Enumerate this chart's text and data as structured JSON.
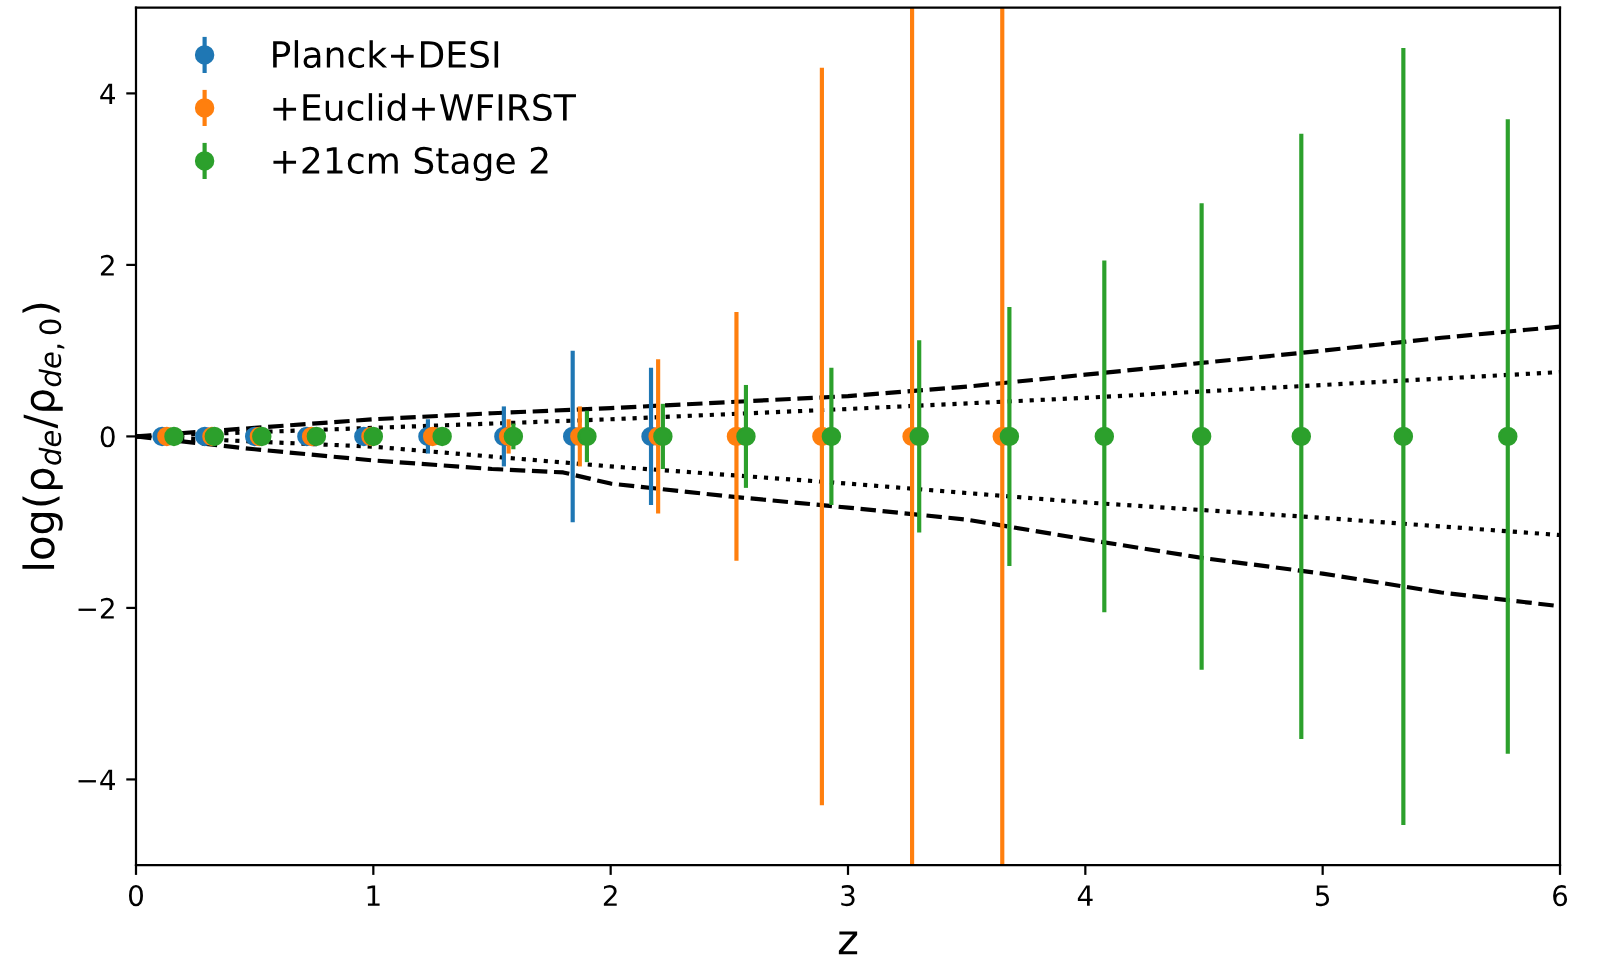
{
  "chart_data": {
    "type": "scatter",
    "xlabel": "z",
    "ylabel": "log(ρ$_{de}$/ρ$_{de,0}$)",
    "xlim": [
      0,
      6
    ],
    "ylim": [
      -5,
      5
    ],
    "xticks": [
      0,
      1,
      2,
      3,
      4,
      5,
      6
    ],
    "yticks": [
      -4,
      -2,
      0,
      2,
      4
    ],
    "legend": "top left",
    "grid": false,
    "marker": "circle",
    "series": [
      {
        "type": "line",
        "marker": "none",
        "line_style": "dashed",
        "color": "#000000",
        "x": [
          0,
          0.5,
          1,
          1.5,
          2,
          2.5,
          3,
          3.5,
          4,
          4.5,
          5,
          5.5,
          6
        ],
        "values": [
          0,
          0.1,
          0.2,
          0.27,
          0.33,
          0.4,
          0.47,
          0.58,
          0.72,
          0.86,
          1.0,
          1.15,
          1.28
        ]
      },
      {
        "type": "line",
        "marker": "none",
        "line_style": "dashed",
        "color": "#000000",
        "x": [
          0,
          0.5,
          1,
          1.5,
          1.8,
          2,
          2.5,
          3,
          3.5,
          4,
          4.5,
          5,
          5.5,
          6
        ],
        "values": [
          0,
          -0.15,
          -0.28,
          -0.38,
          -0.42,
          -0.55,
          -0.7,
          -0.83,
          -0.97,
          -1.2,
          -1.42,
          -1.6,
          -1.82,
          -1.98
        ]
      },
      {
        "type": "line",
        "marker": "none",
        "line_style": "dotted",
        "color": "#000000",
        "x": [
          0,
          1,
          2,
          3,
          4,
          5,
          6
        ],
        "values": [
          0,
          0.1,
          0.2,
          0.32,
          0.45,
          0.6,
          0.75
        ]
      },
      {
        "type": "line",
        "marker": "none",
        "line_style": "dotted",
        "color": "#000000",
        "x": [
          0,
          1,
          2,
          3,
          4,
          5,
          6
        ],
        "values": [
          0,
          -0.12,
          -0.35,
          -0.55,
          -0.77,
          -0.95,
          -1.15
        ]
      },
      {
        "name": "Planck+DESI",
        "color": "#1f77b4",
        "x": [
          0.11,
          0.29,
          0.5,
          0.72,
          0.96,
          1.23,
          1.55,
          1.84,
          2.17
        ],
        "values": [
          0,
          0,
          0,
          0,
          0,
          0,
          0,
          0,
          0
        ],
        "errors": [
          0.05,
          0.05,
          0.05,
          0.08,
          0.1,
          0.2,
          0.35,
          1.0,
          0.8
        ]
      },
      {
        "name": "+Euclid+WFIRST",
        "color": "#ff7f0e",
        "x": [
          0.13,
          0.32,
          0.52,
          0.74,
          0.99,
          1.25,
          1.57,
          1.87,
          2.2,
          2.53,
          2.89,
          3.27,
          3.65
        ],
        "values": [
          0,
          0,
          0,
          0,
          0,
          0,
          0,
          0,
          0,
          0,
          0,
          0,
          0
        ],
        "errors": [
          0.03,
          0.03,
          0.04,
          0.05,
          0.07,
          0.1,
          0.2,
          0.35,
          0.9,
          1.45,
          4.3,
          5,
          5
        ]
      },
      {
        "name": "+21cm Stage 2",
        "color": "#2ca02c",
        "x": [
          0.16,
          0.33,
          0.53,
          0.76,
          1.0,
          1.29,
          1.59,
          1.9,
          2.22,
          2.57,
          2.93,
          3.3,
          3.68,
          4.08,
          4.49,
          4.91,
          5.34,
          5.78
        ],
        "values": [
          0,
          0,
          0,
          0,
          0,
          0,
          0,
          0,
          0,
          0,
          0,
          0,
          0,
          0,
          0,
          0,
          0,
          0
        ],
        "errors": [
          0.03,
          0.03,
          0.04,
          0.05,
          0.06,
          0.1,
          0.15,
          0.3,
          0.38,
          0.6,
          0.8,
          1.12,
          1.51,
          2.05,
          2.72,
          3.53,
          4.53,
          3.7
        ]
      }
    ]
  }
}
